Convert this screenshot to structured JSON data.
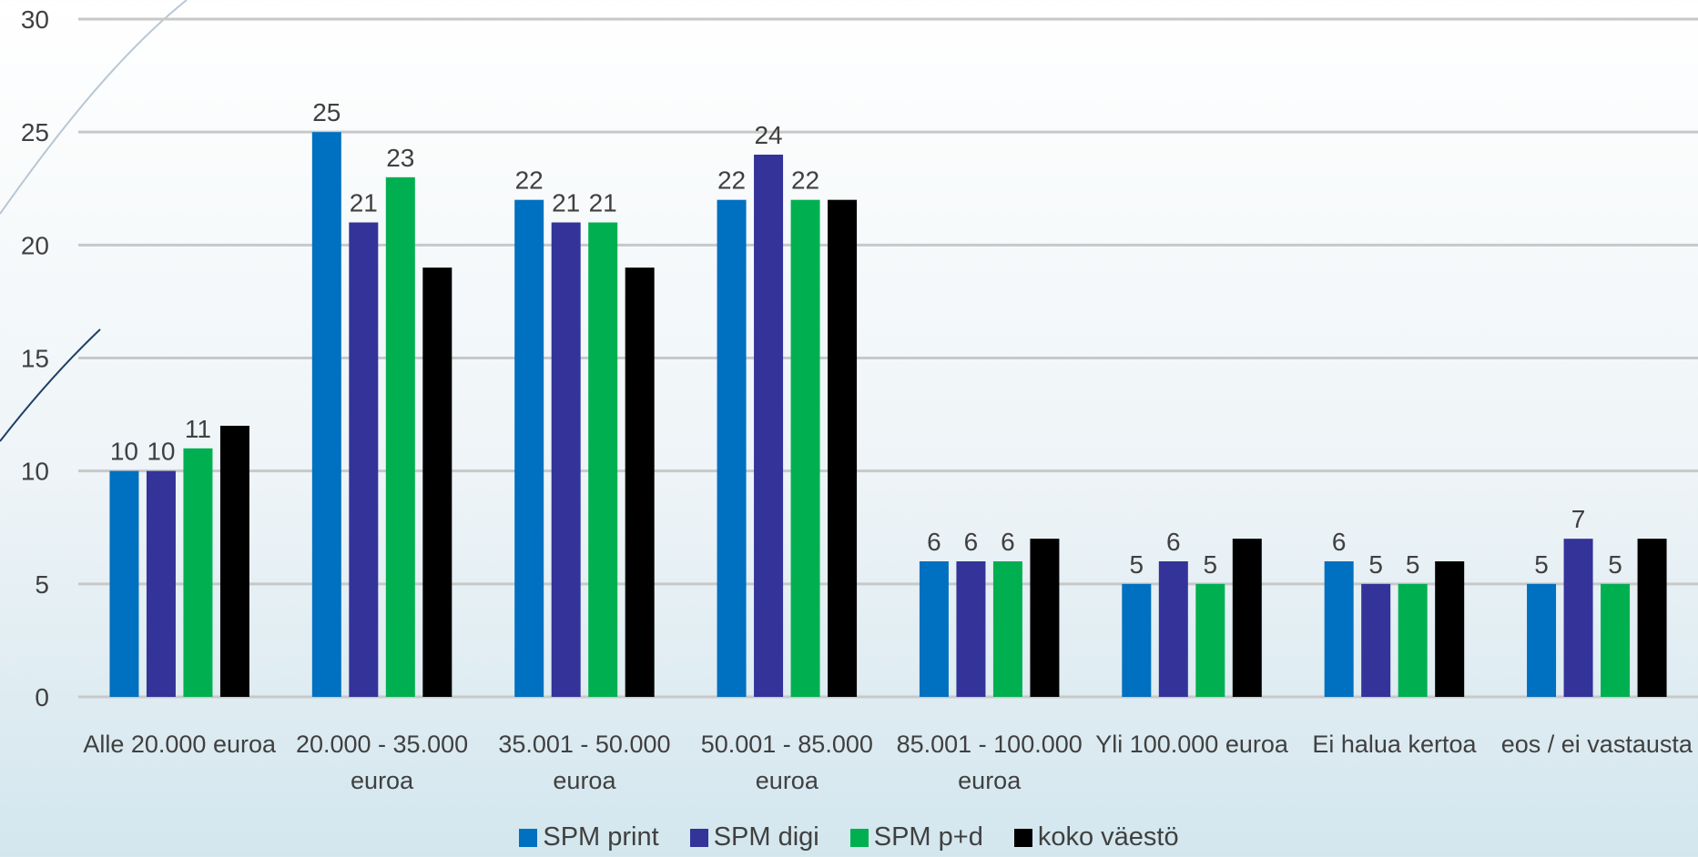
{
  "chart_data": {
    "type": "bar",
    "categories": [
      "Alle 20.000 euroa",
      "20.000 - 35.000 euroa",
      "35.001 - 50.000 euroa",
      "50.001 - 85.000 euroa",
      "85.001 - 100.000 euroa",
      "Yli 100.000 euroa",
      "Ei halua kertoa",
      "eos / ei vastausta"
    ],
    "series": [
      {
        "name": "SPM print",
        "color": "#0070c0",
        "values": [
          10,
          25,
          22,
          22,
          6,
          5,
          6,
          5
        ],
        "data_labels": true
      },
      {
        "name": "SPM digi",
        "color": "#333399",
        "values": [
          10,
          21,
          21,
          24,
          6,
          6,
          5,
          7
        ],
        "data_labels": true
      },
      {
        "name": "SPM p+d",
        "color": "#00b050",
        "values": [
          11,
          23,
          21,
          22,
          6,
          5,
          5,
          5
        ],
        "data_labels": true
      },
      {
        "name": "koko väestö",
        "color": "#000000",
        "values": [
          12,
          19,
          19,
          22,
          7,
          7,
          6,
          7
        ],
        "data_labels": false
      }
    ],
    "ylim": [
      0,
      30
    ],
    "yticks": [
      0,
      5,
      10,
      15,
      20,
      25,
      30
    ],
    "grid": true,
    "legend": "bottom"
  }
}
